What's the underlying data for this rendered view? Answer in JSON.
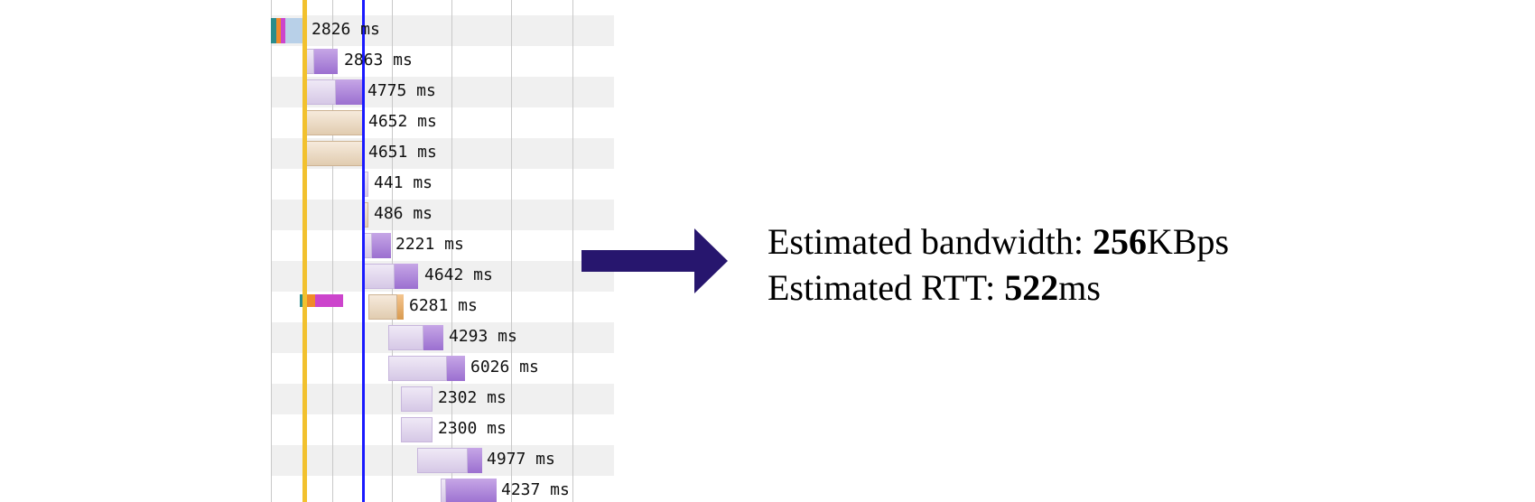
{
  "waterfall": {
    "rows": [
      {
        "label": "2826 ms",
        "kind": "purple"
      },
      {
        "label": "2863 ms",
        "kind": "purple"
      },
      {
        "label": "4775 ms",
        "kind": "purple"
      },
      {
        "label": "4652 ms",
        "kind": "tan"
      },
      {
        "label": "4651 ms",
        "kind": "tan"
      },
      {
        "label": "441 ms",
        "kind": "purple"
      },
      {
        "label": "486 ms",
        "kind": "tan"
      },
      {
        "label": "2221 ms",
        "kind": "purple"
      },
      {
        "label": "4642 ms",
        "kind": "purple"
      },
      {
        "label": "6281 ms",
        "kind": "tan"
      },
      {
        "label": "4293 ms",
        "kind": "purple"
      },
      {
        "label": "6026 ms",
        "kind": "purple"
      },
      {
        "label": "2302 ms",
        "kind": "purple"
      },
      {
        "label": "2300 ms",
        "kind": "purple"
      },
      {
        "label": "4977 ms",
        "kind": "purple"
      },
      {
        "label": "4237 ms",
        "kind": "purple"
      }
    ],
    "colors": {
      "row_shade": "#f0f0f0",
      "gridline": "#c8c8c8",
      "start_render_line": "#f2c12e",
      "dom_content_line": "#1a1aff",
      "wait": "#d6c8e6",
      "receive": "#9b6fd0",
      "tan_wait": "#e1ccb0",
      "tan_receive": "#d99a4f"
    }
  },
  "arrow": {
    "color": "#27166e",
    "icon": "right-arrow-icon"
  },
  "estimates": {
    "bandwidth_prefix": "Estimated bandwidth: ",
    "bandwidth_value": "256",
    "bandwidth_unit": "KBps",
    "rtt_prefix": "Estimated RTT: ",
    "rtt_value": "522",
    "rtt_unit": "ms"
  }
}
